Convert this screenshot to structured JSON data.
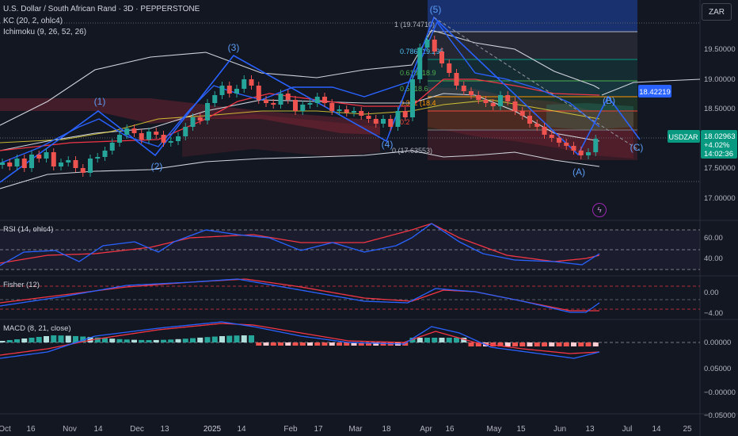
{
  "header": {
    "title": "U.S. Dollar / South African Rand · 3D · PEPPERSTONE",
    "indicator1": "KC (20, 2, ohlc4)",
    "indicator2": "Ichimoku (9, 26, 52, 26)"
  },
  "currency": "ZAR",
  "symbol_tag": "USDZAR",
  "last_price": "18.02963",
  "change_pct": "+4.02%",
  "countdown": "14:02:36",
  "target_label": "18.42219",
  "panes": {
    "rsi": "RSI (14, ohlc4)",
    "fisher": "Fisher (12)",
    "macd": "MACD (8, 21, close)"
  },
  "price_axis": [
    "19.50000",
    "19.00000",
    "18.50000",
    "17.50000",
    "17.00000"
  ],
  "rsi_axis": [
    "60.00",
    "40.00"
  ],
  "fisher_axis": [
    "0.00",
    "−4.00"
  ],
  "macd_axis": [
    "0.00000",
    "0.05000",
    "−0.00000",
    "−0.05000"
  ],
  "time_axis": [
    "Oct",
    "16",
    "Nov",
    "14",
    "Dec",
    "13",
    "2025",
    "14",
    "Feb",
    "17",
    "Mar",
    "18",
    "Apr",
    "16",
    "May",
    "15",
    "Jun",
    "13",
    "Jul",
    "14",
    "25"
  ],
  "fib_levels": [
    "1 (19.74710)",
    "0.786 (19.295",
    "0.618 (18.9",
    "0.5 (18.6",
    "0.382 (18.4",
    "0.2",
    "0 (17.63553)"
  ],
  "wave_labels": [
    "(1)",
    "(2)",
    "(3)",
    "(4)",
    "(5)",
    "(A)",
    "(B)",
    "(C)"
  ],
  "colors": {
    "bg": "#131722",
    "up": "#26a69a",
    "down": "#ef5350",
    "blue": "#2962ff",
    "red": "#f23645"
  }
}
